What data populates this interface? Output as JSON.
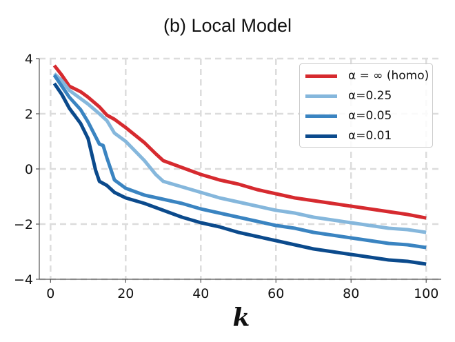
{
  "chart_data": {
    "type": "line",
    "title": "(b) Local Model",
    "xlabel": "k",
    "ylabel": "",
    "xlim": [
      -3,
      104
    ],
    "ylim": [
      -4,
      4
    ],
    "xticks": [
      0,
      20,
      40,
      60,
      80,
      100
    ],
    "yticks": [
      4,
      2,
      0,
      -2,
      -4
    ],
    "xtick_labels": [
      "0",
      "20",
      "40",
      "60",
      "80",
      "100"
    ],
    "ytick_labels": [
      "4",
      "2",
      "0",
      "−2",
      "−4"
    ],
    "grid": true,
    "legend_position": "top-right",
    "series": [
      {
        "name": "α = ∞ (homo)",
        "color": "#d62a2f",
        "x": [
          1,
          3,
          5,
          8,
          10,
          13,
          15,
          17,
          20,
          25,
          28,
          30,
          35,
          40,
          45,
          50,
          55,
          60,
          65,
          70,
          75,
          80,
          85,
          90,
          95,
          100
        ],
        "y": [
          3.75,
          3.4,
          3.0,
          2.8,
          2.6,
          2.25,
          1.95,
          1.8,
          1.5,
          0.95,
          0.55,
          0.3,
          0.05,
          -0.2,
          -0.4,
          -0.55,
          -0.75,
          -0.9,
          -1.05,
          -1.15,
          -1.25,
          -1.35,
          -1.45,
          -1.55,
          -1.65,
          -1.78
        ]
      },
      {
        "name": "α=0.25",
        "color": "#85b7dc",
        "x": [
          1,
          3,
          5,
          8,
          10,
          13,
          15,
          17,
          20,
          25,
          28,
          30,
          35,
          40,
          45,
          50,
          55,
          60,
          65,
          70,
          75,
          80,
          85,
          90,
          95,
          100
        ],
        "y": [
          3.45,
          3.2,
          2.85,
          2.55,
          2.35,
          2.0,
          1.75,
          1.3,
          1.0,
          0.3,
          -0.2,
          -0.45,
          -0.65,
          -0.85,
          -1.05,
          -1.2,
          -1.35,
          -1.5,
          -1.6,
          -1.75,
          -1.85,
          -1.95,
          -2.05,
          -2.15,
          -2.2,
          -2.3
        ]
      },
      {
        "name": "α=0.05",
        "color": "#3a84c1",
        "x": [
          1,
          3,
          5,
          8,
          10,
          13,
          14,
          15,
          17,
          20,
          25,
          30,
          35,
          40,
          45,
          50,
          55,
          60,
          65,
          70,
          75,
          80,
          85,
          90,
          95,
          100
        ],
        "y": [
          3.4,
          3.0,
          2.6,
          2.15,
          1.7,
          0.9,
          0.85,
          0.4,
          -0.4,
          -0.7,
          -0.95,
          -1.1,
          -1.25,
          -1.45,
          -1.6,
          -1.75,
          -1.9,
          -2.05,
          -2.15,
          -2.3,
          -2.4,
          -2.5,
          -2.6,
          -2.7,
          -2.75,
          -2.85
        ]
      },
      {
        "name": "α=0.01",
        "color": "#0b4a8c",
        "x": [
          1,
          3,
          5,
          8,
          10,
          12,
          13,
          15,
          17,
          20,
          25,
          30,
          35,
          40,
          45,
          50,
          55,
          60,
          65,
          70,
          75,
          80,
          85,
          90,
          95,
          100
        ],
        "y": [
          3.1,
          2.7,
          2.2,
          1.65,
          1.1,
          -0.05,
          -0.45,
          -0.6,
          -0.85,
          -1.05,
          -1.25,
          -1.5,
          -1.75,
          -1.95,
          -2.1,
          -2.3,
          -2.45,
          -2.6,
          -2.75,
          -2.9,
          -3.0,
          -3.1,
          -3.2,
          -3.3,
          -3.35,
          -3.45
        ]
      }
    ]
  }
}
